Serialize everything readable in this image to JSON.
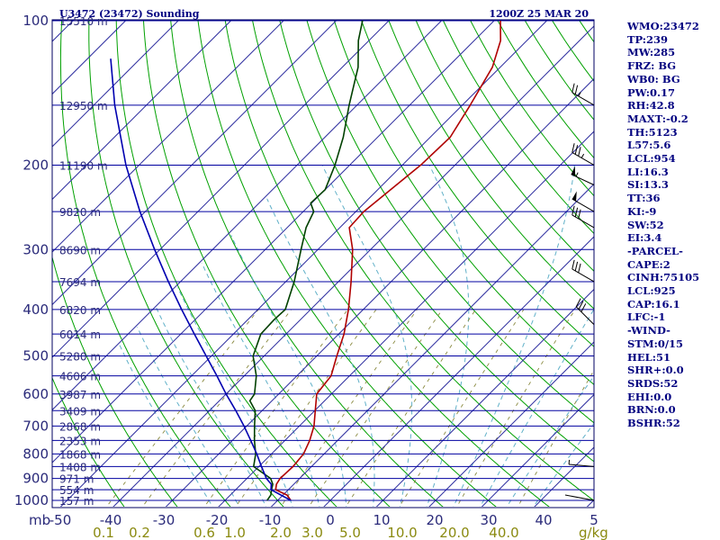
{
  "header": {
    "station": "U3472 (23472) Sounding",
    "time": "1200Z 25 MAR 20"
  },
  "indices": [
    "WMO:23472",
    "TP:239",
    "MW:285",
    "FRZ: BG",
    "WB0: BG",
    "PW:0.17",
    "RH:42.8",
    "MAXT:-0.2",
    "TH:5123",
    "L57:5.6",
    "LCL:954",
    "LI:16.3",
    "SI:13.3",
    "TT:36",
    "KI:-9",
    "SW:52",
    "EI:3.4",
    "-PARCEL-",
    "CAPE:2",
    "CINH:75105",
    "LCL:925",
    "CAP:16.1",
    "LFC:-1",
    "-WIND-",
    "STM:0/15",
    "HEL:51",
    "SHR+:0.0",
    "SRDS:52",
    "EHI:0.0",
    "BRN:0.0",
    "BSHR:52"
  ],
  "colors": {
    "temperature": "#b00000",
    "dewpoint": "#004000",
    "parcel": "#0000b0",
    "isobar": "#0000a0",
    "isotherm": "#3030a0",
    "dry_adiabat": "#00a000",
    "moist_adiabat": "#60b0c8",
    "mixing_ratio": "#8a8a40",
    "text": "#000080"
  },
  "chart_data": {
    "type": "line",
    "chart_kind": "skew-T log-P sounding",
    "y_axis": {
      "unit": "mb",
      "scale": "log",
      "range": [
        1000,
        100
      ],
      "ticks": [
        100,
        200,
        300,
        400,
        500,
        600,
        700,
        800,
        900,
        1000
      ]
    },
    "x_axis": {
      "unit": "°C",
      "range": [
        -50,
        50
      ],
      "ticks": [
        "-50",
        "-40",
        "-30",
        "-20",
        "-10",
        "0",
        "10",
        "20",
        "30",
        "40",
        "5"
      ]
    },
    "axis_unit_label": "mb",
    "mixing_ratio_unit": "g/kg",
    "mixing_ratio_labels": [
      "0.1",
      "0.2",
      "0.6",
      "1.0",
      "2.0",
      "3.0",
      "5.0",
      "10.0",
      "20.0",
      "40.0"
    ],
    "height_labels": [
      {
        "p": 100,
        "label": "15510 m"
      },
      {
        "p": 150,
        "label": "12950 m"
      },
      {
        "p": 200,
        "label": "11190 m"
      },
      {
        "p": 250,
        "label": "9820 m"
      },
      {
        "p": 300,
        "label": "8690 m"
      },
      {
        "p": 350,
        "label": "7694 m"
      },
      {
        "p": 400,
        "label": "6820 m"
      },
      {
        "p": 450,
        "label": "6014 m"
      },
      {
        "p": 500,
        "label": "5280 m"
      },
      {
        "p": 550,
        "label": "4606 m"
      },
      {
        "p": 600,
        "label": "3987 m"
      },
      {
        "p": 650,
        "label": "3409 m"
      },
      {
        "p": 700,
        "label": "2868 m"
      },
      {
        "p": 750,
        "label": "2353 m"
      },
      {
        "p": 800,
        "label": "1868 m"
      },
      {
        "p": 850,
        "label": "1408 m"
      },
      {
        "p": 900,
        "label": "971 m"
      },
      {
        "p": 950,
        "label": "554 m"
      },
      {
        "p": 1000,
        "label": "157 m"
      }
    ],
    "series": [
      {
        "key": "temperature",
        "points": [
          [
            1000,
            -7.5
          ],
          [
            975,
            -9.2
          ],
          [
            950,
            -12.4
          ],
          [
            925,
            -13.3
          ],
          [
            900,
            -13.7
          ],
          [
            850,
            -13.5
          ],
          [
            800,
            -13.9
          ],
          [
            750,
            -15.3
          ],
          [
            700,
            -17.2
          ],
          [
            650,
            -19.9
          ],
          [
            600,
            -22.8
          ],
          [
            550,
            -23.5
          ],
          [
            500,
            -26.2
          ],
          [
            450,
            -29.0
          ],
          [
            400,
            -32.8
          ],
          [
            350,
            -37.6
          ],
          [
            300,
            -43.4
          ],
          [
            270,
            -48.2
          ],
          [
            250,
            -48.5
          ],
          [
            200,
            -46.5
          ],
          [
            175,
            -46.2
          ],
          [
            150,
            -48.5
          ],
          [
            125,
            -51.5
          ],
          [
            110,
            -55.0
          ],
          [
            100,
            -58.8
          ]
        ]
      },
      {
        "key": "dewpoint",
        "points": [
          [
            1000,
            -12.0
          ],
          [
            975,
            -12.3
          ],
          [
            950,
            -13.2
          ],
          [
            925,
            -14.0
          ],
          [
            900,
            -15.5
          ],
          [
            850,
            -21.0
          ],
          [
            800,
            -23.0
          ],
          [
            750,
            -25.8
          ],
          [
            700,
            -28.5
          ],
          [
            650,
            -31.3
          ],
          [
            620,
            -34.2
          ],
          [
            600,
            -34.6
          ],
          [
            550,
            -37.7
          ],
          [
            500,
            -42.1
          ],
          [
            450,
            -44.8
          ],
          [
            420,
            -45.0
          ],
          [
            400,
            -44.8
          ],
          [
            350,
            -48.4
          ],
          [
            300,
            -53.2
          ],
          [
            270,
            -56.4
          ],
          [
            250,
            -58.0
          ],
          [
            240,
            -60.2
          ],
          [
            225,
            -60.0
          ],
          [
            200,
            -62.8
          ],
          [
            175,
            -66.5
          ],
          [
            150,
            -71.5
          ],
          [
            125,
            -77.0
          ],
          [
            110,
            -82.0
          ],
          [
            100,
            -85.0
          ]
        ]
      },
      {
        "key": "parcel",
        "points": [
          [
            1000,
            -7.5
          ],
          [
            950,
            -13.3
          ],
          [
            925,
            -14.3
          ],
          [
            900,
            -16.3
          ],
          [
            850,
            -19.5
          ],
          [
            800,
            -22.8
          ],
          [
            750,
            -26.5
          ],
          [
            700,
            -30.5
          ],
          [
            650,
            -35.0
          ],
          [
            600,
            -40.0
          ],
          [
            550,
            -45.2
          ],
          [
            500,
            -51.0
          ],
          [
            450,
            -57.4
          ],
          [
            400,
            -64.5
          ],
          [
            350,
            -72.3
          ],
          [
            300,
            -81.0
          ],
          [
            250,
            -91.0
          ],
          [
            200,
            -102.5
          ],
          [
            150,
            -116.0
          ],
          [
            120,
            -125.6
          ]
        ]
      }
    ],
    "wind_barbs": [
      {
        "p": 150,
        "dir": 300,
        "spd": 25
      },
      {
        "p": 200,
        "dir": 300,
        "spd": 35
      },
      {
        "p": 220,
        "dir": 295,
        "spd": 55
      },
      {
        "p": 250,
        "dir": 300,
        "spd": 50
      },
      {
        "p": 270,
        "dir": 300,
        "spd": 30
      },
      {
        "p": 350,
        "dir": 300,
        "spd": 30
      },
      {
        "p": 430,
        "dir": 315,
        "spd": 30
      },
      {
        "p": 850,
        "dir": 275,
        "spd": 5
      },
      {
        "p": 1000,
        "dir": 90,
        "spd": 0
      }
    ]
  }
}
